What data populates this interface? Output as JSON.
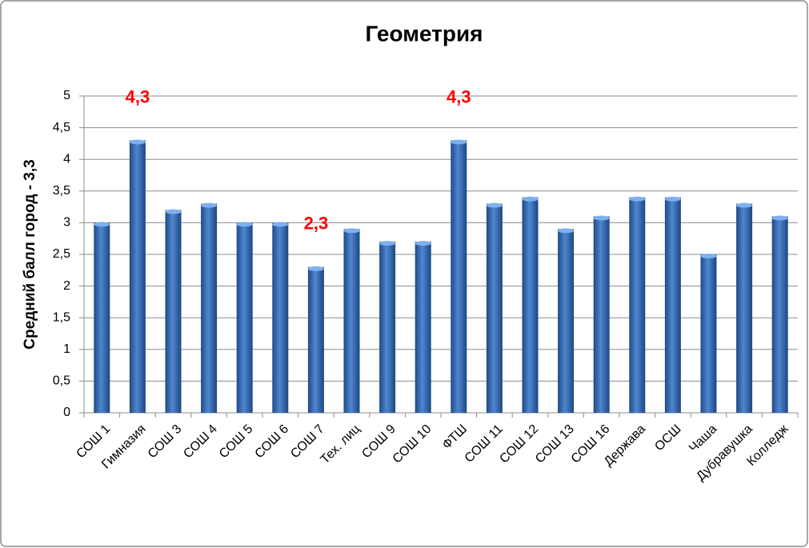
{
  "chart_data": {
    "type": "bar",
    "title": "Геометрия",
    "y_label": "Средний балл город - 3,3",
    "categories": [
      "СОШ 1",
      "Гимназия",
      "СОШ 3",
      "СОШ 4",
      "СОШ 5",
      "СОШ 6",
      "СОШ 7",
      "Тех. лиц",
      "СОШ 9",
      "СОШ 10",
      "ФТШ",
      "СОШ 11",
      "СОШ 12",
      "СОШ 13",
      "СОШ 16",
      "Держава",
      "ОСШ",
      "Чаша",
      "Дубравушка",
      "Колледж"
    ],
    "values": [
      3,
      4.3,
      3.2,
      3.3,
      3,
      3,
      2.3,
      2.9,
      2.7,
      2.7,
      4.3,
      3.3,
      3.4,
      2.9,
      3.1,
      3.4,
      3.4,
      2.5,
      3.3,
      3.1
    ],
    "value_labels": [
      null,
      "4,3",
      null,
      null,
      null,
      null,
      "2,3",
      null,
      null,
      null,
      "4,3",
      null,
      null,
      null,
      null,
      null,
      null,
      null,
      null,
      null
    ],
    "color": "#3a6fba",
    "value_label_color": "#ff0000",
    "ylim": [
      0,
      5
    ],
    "yticks": [
      0,
      {
        "value": 0.5,
        "label": "0,5"
      },
      1,
      {
        "value": 1.5,
        "label": "1,5"
      },
      2,
      {
        "value": 2.5,
        "label": "2,5"
      },
      3,
      {
        "value": 3.5,
        "label": "3,5"
      },
      4,
      {
        "value": 4.5,
        "label": "4,5"
      },
      5
    ],
    "grid": true
  }
}
